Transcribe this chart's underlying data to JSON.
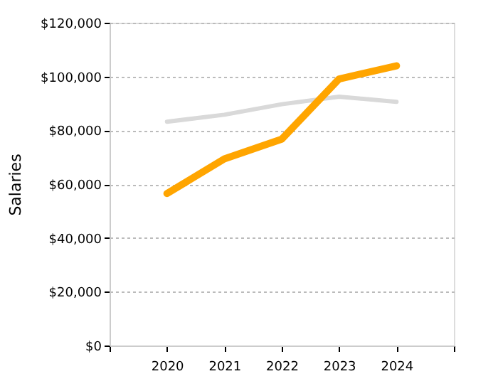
{
  "chart_data": {
    "type": "line",
    "ylabel": "Salaries",
    "x": [
      2020,
      2021,
      2022,
      2023,
      2024
    ],
    "series": [
      {
        "color": "#d9d9d9",
        "values": [
          83200,
          85800,
          89700,
          92500,
          90600
        ]
      },
      {
        "color": "#ffa500",
        "values": [
          56500,
          69400,
          76700,
          99100,
          104000
        ]
      }
    ],
    "xlim": [
      2019,
      2025
    ],
    "xticks": [
      {
        "value": 2019,
        "label": null
      },
      2020,
      2021,
      2022,
      2023,
      2024,
      {
        "value": 2025,
        "label": null
      }
    ],
    "ylim": [
      0,
      120000
    ],
    "yticks": [
      {
        "value": 0,
        "label": "$0"
      },
      {
        "value": 20000,
        "label": "$20,000"
      },
      {
        "value": 40000,
        "label": "$40,000"
      },
      {
        "value": 60000,
        "label": "$60,000"
      },
      {
        "value": 80000,
        "label": "$80,000"
      },
      {
        "value": 100000,
        "label": "$100,000"
      },
      {
        "value": 120000,
        "label": "$120,000"
      }
    ],
    "grid": "y",
    "marker": "none",
    "line_style": "solid"
  }
}
